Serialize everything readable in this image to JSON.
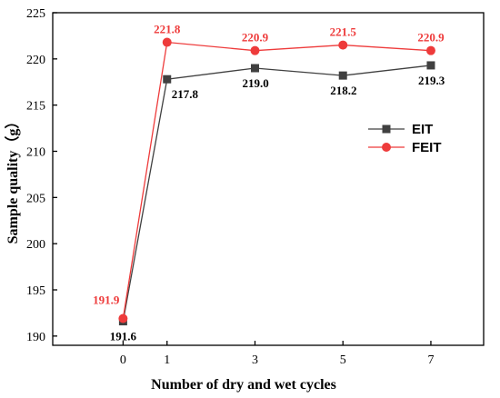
{
  "chart_data": {
    "type": "line",
    "xlabel": "Number of dry and wet cycles",
    "ylabel": "Sample quality（g）",
    "x": [
      0,
      1,
      3,
      5,
      7
    ],
    "x_ticks": [
      "0",
      "1",
      "3",
      "5",
      "7"
    ],
    "y_ticks": [
      "190",
      "195",
      "200",
      "205",
      "210",
      "215",
      "220",
      "225"
    ],
    "ylim": [
      189,
      225
    ],
    "grid": false,
    "legend_position": "right",
    "series": [
      {
        "name": "EIT",
        "color": "#404040",
        "marker": "square",
        "values": [
          191.6,
          217.8,
          219.0,
          218.2,
          219.3
        ],
        "labels": [
          "191.6",
          "217.8",
          "219.0",
          "218.2",
          "219.3"
        ]
      },
      {
        "name": "FEIT",
        "color": "#ee3b3b",
        "marker": "circle",
        "values": [
          191.9,
          221.8,
          220.9,
          221.5,
          220.9
        ],
        "labels": [
          "191.9",
          "221.8",
          "220.9",
          "221.5",
          "220.9"
        ]
      }
    ]
  }
}
